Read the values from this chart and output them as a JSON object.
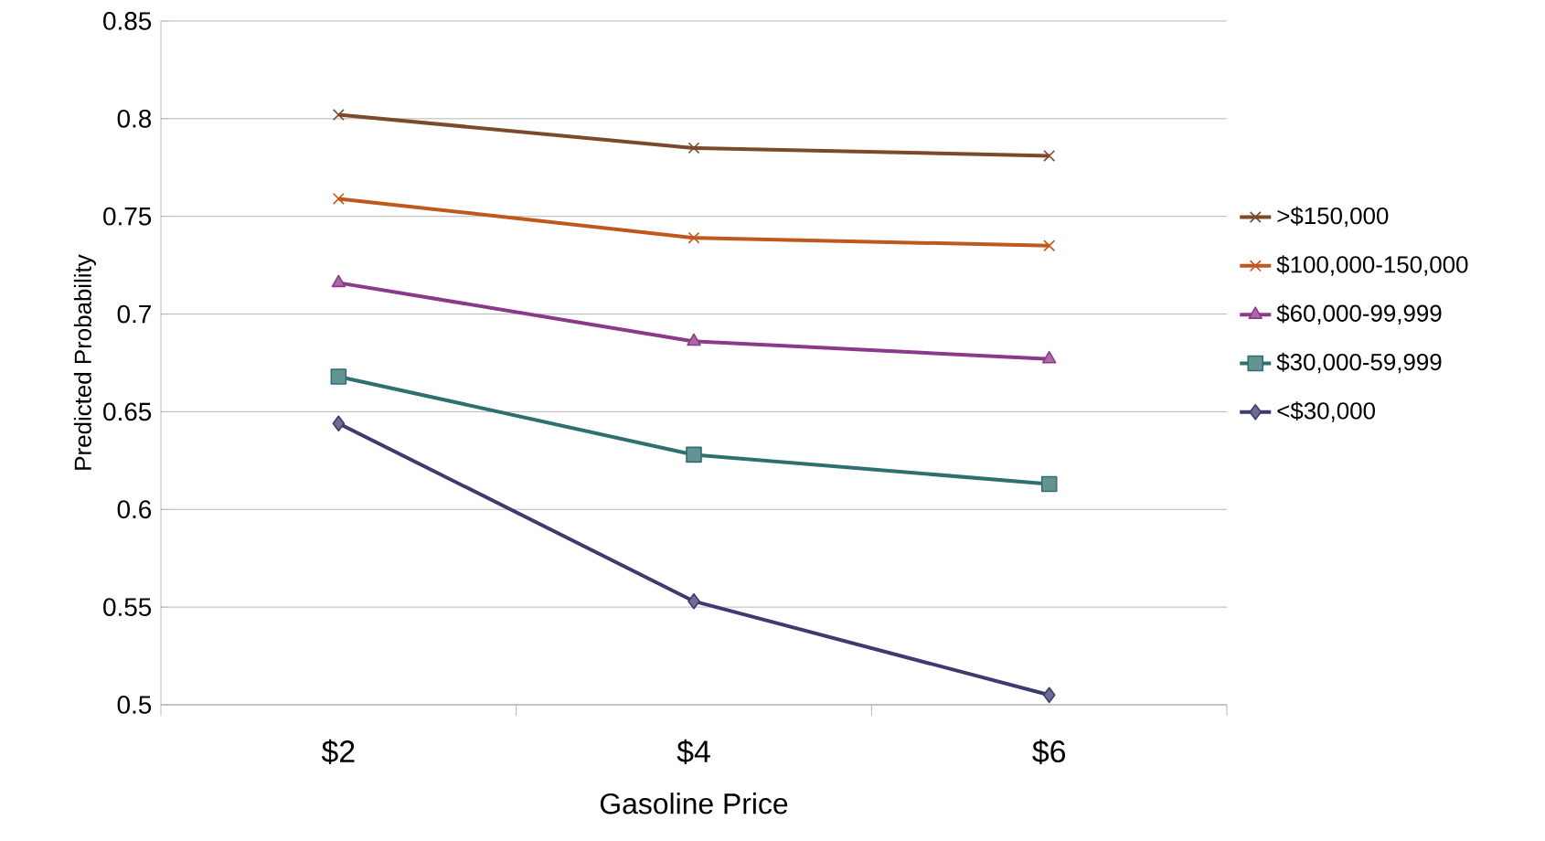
{
  "chart_data": {
    "type": "line",
    "xlabel": "Gasoline Price",
    "ylabel": "Predicted Probability",
    "categories": [
      "$2",
      "$4",
      "$6"
    ],
    "series": [
      {
        "name": ">$150,000",
        "color": "#7b4a2a",
        "marker": "cross",
        "values": [
          0.802,
          0.785,
          0.781
        ]
      },
      {
        "name": "$100,000-150,000",
        "color": "#c0581e",
        "marker": "cross",
        "values": [
          0.759,
          0.739,
          0.735
        ]
      },
      {
        "name": "$60,000-99,999",
        "color": "#8b3a8b",
        "marker": "triangle",
        "values": [
          0.716,
          0.686,
          0.677
        ]
      },
      {
        "name": "$30,000-59,999",
        "color": "#2f6f6f",
        "marker": "square",
        "values": [
          0.668,
          0.628,
          0.613
        ]
      },
      {
        "name": "<$30,000",
        "color": "#3c3c6e",
        "marker": "diamond",
        "values": [
          0.644,
          0.553,
          0.505
        ]
      }
    ],
    "ylim": [
      0.5,
      0.85
    ],
    "yticks": [
      0.5,
      0.55,
      0.6,
      0.65,
      0.7,
      0.75,
      0.8,
      0.85
    ],
    "grid": "y",
    "legend": "right",
    "line_style": "solid"
  }
}
